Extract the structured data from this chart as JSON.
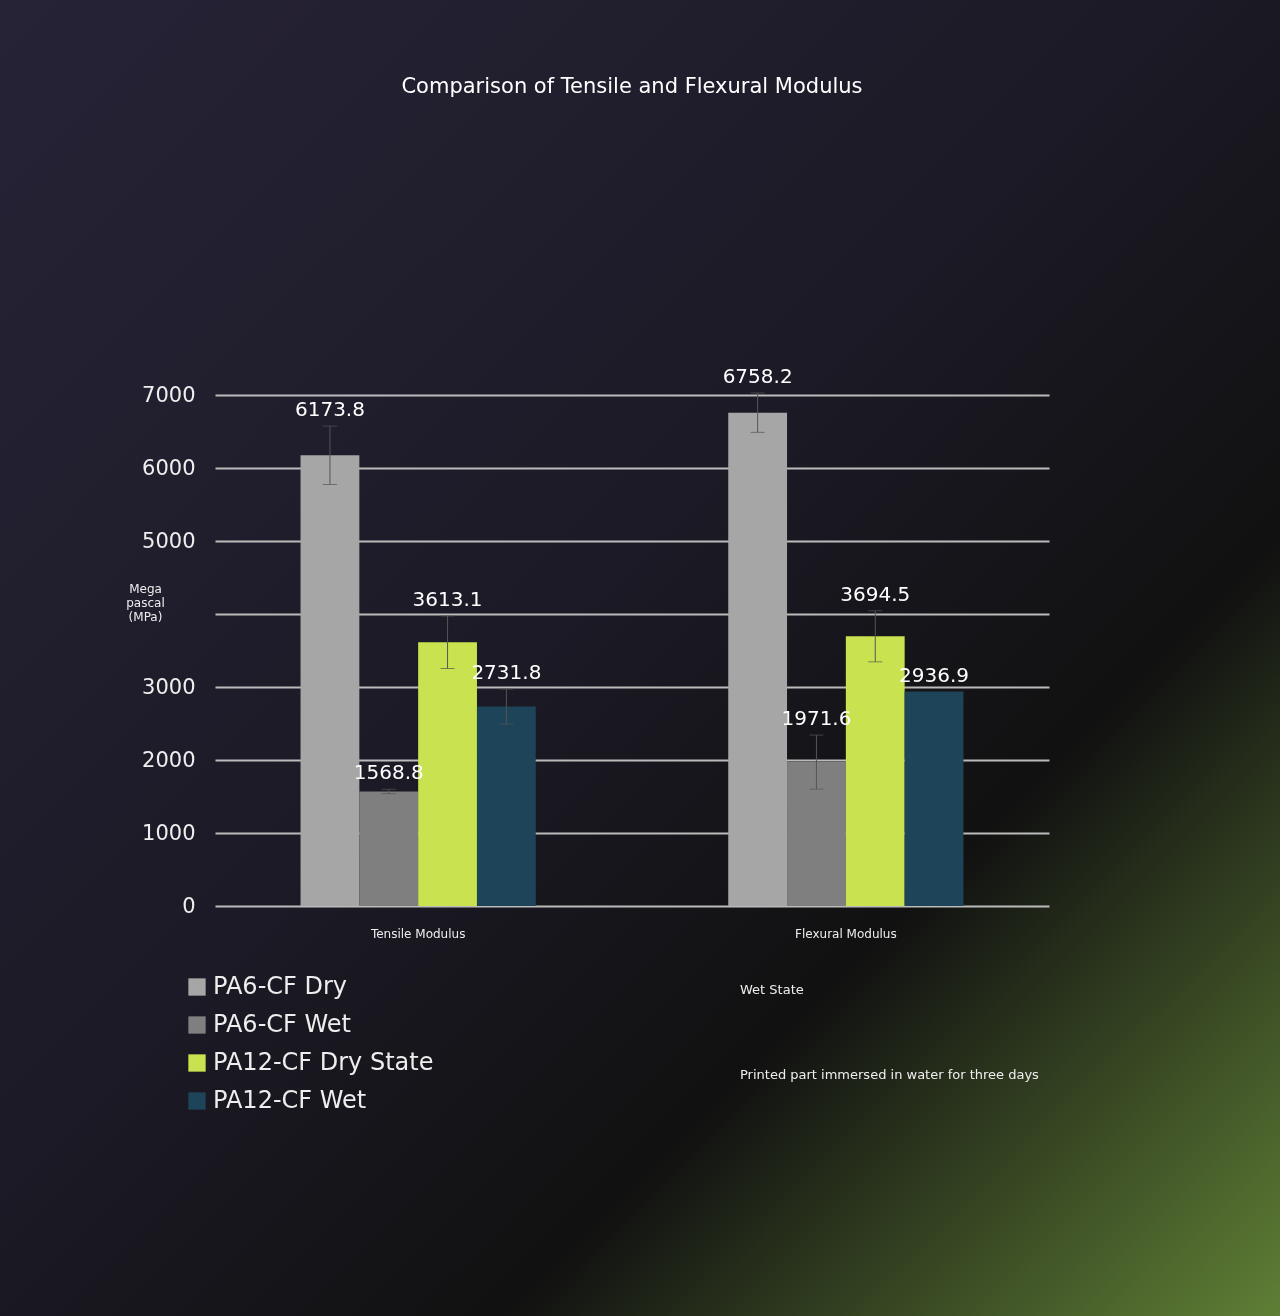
{
  "chart_data": {
    "type": "bar",
    "title": "Comparison of Tensile and Flexural Modulus",
    "ylabel": "Mega pascal (MPa)",
    "categories": [
      "Tensile Modulus",
      "Flexural Modulus"
    ],
    "series": [
      {
        "name": "PA6-CF Dry",
        "color": "#a6a6a6",
        "values": [
          6173.8,
          6758.2
        ],
        "errors": [
          400,
          270
        ]
      },
      {
        "name": "PA6-CF Wet",
        "color": "#7f7f7f",
        "values": [
          1568.8,
          1971.6
        ],
        "errors": [
          30,
          370
        ]
      },
      {
        "name": "PA12-CF Dry State",
        "color": "#c8e34f",
        "values": [
          3613.1,
          3694.5
        ],
        "errors": [
          360,
          350
        ]
      },
      {
        "name": "PA12-CF Wet",
        "color": "#1d4458",
        "values": [
          2731.8,
          2936.9
        ],
        "errors": [
          240,
          null
        ]
      }
    ],
    "ylim": [
      0,
      7000
    ],
    "yticks": [
      0,
      1000,
      2000,
      3000,
      {
        "value": 4000,
        "label": null
      },
      5000,
      6000,
      7000
    ],
    "grid": true,
    "data_labels": true,
    "legend": "bottom left",
    "annotations": [
      "Wet State",
      "Printed part immersed in water for three days"
    ]
  }
}
